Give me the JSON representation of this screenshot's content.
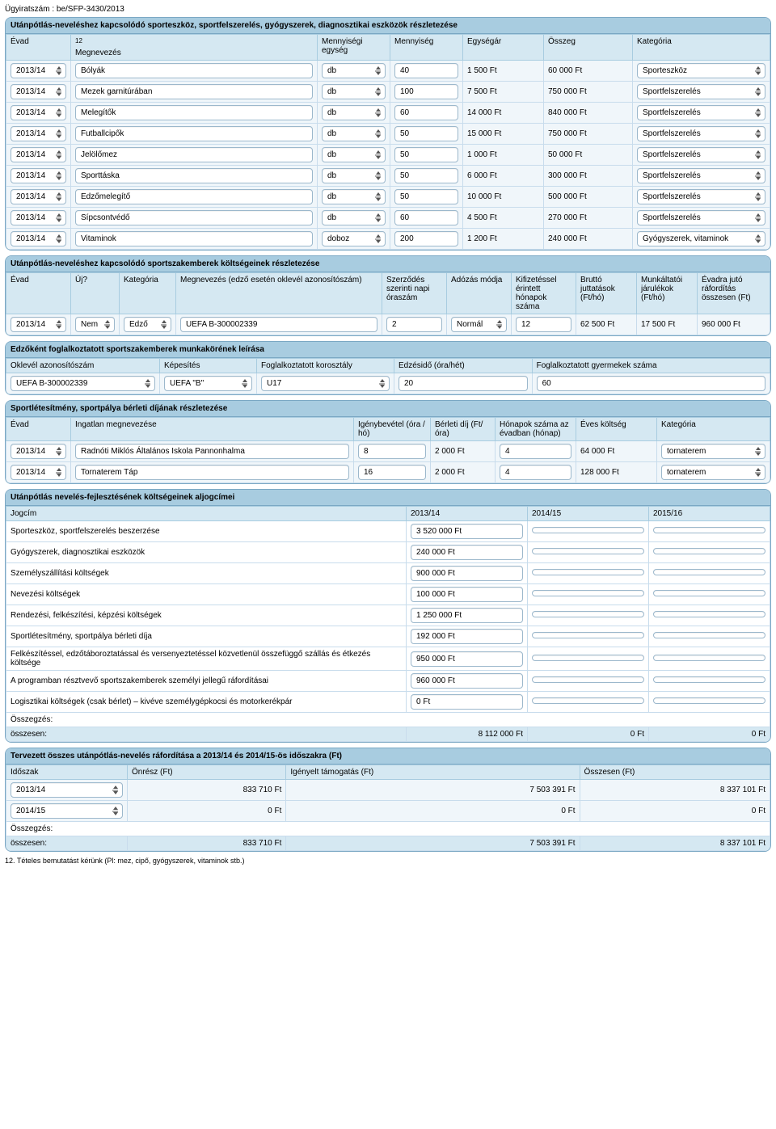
{
  "doc_id": "Ügyiratszám : be/SFP-3430/2013",
  "equipment": {
    "title": "Utánpótlás-neveléshez kapcsolódó sporteszköz, sportfelszerelés, gyógyszerek, diagnosztikai eszközök részletezése",
    "sup": "12",
    "headers": [
      "Évad",
      "Megnevezés",
      "Mennyiségi egység",
      "Mennyiség",
      "Egységár",
      "Összeg",
      "Kategória"
    ],
    "rows": [
      {
        "evad": "2013/14",
        "name": "Bólyák",
        "unit": "db",
        "qty": "40",
        "price": "1 500 Ft",
        "sum": "60 000  Ft",
        "cat": "Sporteszköz"
      },
      {
        "evad": "2013/14",
        "name": "Mezek garnitúrában",
        "unit": "db",
        "qty": "100",
        "price": "7 500 Ft",
        "sum": "750 000  Ft",
        "cat": "Sportfelszerelés"
      },
      {
        "evad": "2013/14",
        "name": "Melegítők",
        "unit": "db",
        "qty": "60",
        "price": "14 000 Ft",
        "sum": "840 000  Ft",
        "cat": "Sportfelszerelés"
      },
      {
        "evad": "2013/14",
        "name": "Futballcipők",
        "unit": "db",
        "qty": "50",
        "price": "15 000 Ft",
        "sum": "750 000  Ft",
        "cat": "Sportfelszerelés"
      },
      {
        "evad": "2013/14",
        "name": "Jelölőmez",
        "unit": "db",
        "qty": "50",
        "price": "1 000 Ft",
        "sum": "50 000  Ft",
        "cat": "Sportfelszerelés"
      },
      {
        "evad": "2013/14",
        "name": "Sporttáska",
        "unit": "db",
        "qty": "50",
        "price": "6 000 Ft",
        "sum": "300 000  Ft",
        "cat": "Sportfelszerelés"
      },
      {
        "evad": "2013/14",
        "name": "Edzőmelegítő",
        "unit": "db",
        "qty": "50",
        "price": "10 000 Ft",
        "sum": "500 000  Ft",
        "cat": "Sportfelszerelés"
      },
      {
        "evad": "2013/14",
        "name": "Sípcsontvédő",
        "unit": "db",
        "qty": "60",
        "price": "4 500 Ft",
        "sum": "270 000  Ft",
        "cat": "Sportfelszerelés"
      },
      {
        "evad": "2013/14",
        "name": "Vitaminok",
        "unit": "doboz",
        "qty": "200",
        "price": "1 200 Ft",
        "sum": "240 000  Ft",
        "cat": "Gyógyszerek, vitaminok"
      }
    ]
  },
  "staff": {
    "title": "Utánpótlás-neveléshez kapcsolódó sportszakemberek költségeinek részletezése",
    "headers": [
      "Évad",
      "Új?",
      "Kategória",
      "Megnevezés (edző esetén oklevél azonosítószám)",
      "Szerződés szerinti napi óraszám",
      "Adózás módja",
      "Kifizetéssel érintett hónapok száma",
      "Bruttó juttatások (Ft/hó)",
      "Munkáltatói járulékok (Ft/hó)",
      "Évadra jutó ráfordítás összesen (Ft)"
    ],
    "row": {
      "evad": "2013/14",
      "uj": "Nem",
      "kat": "Edző",
      "meg": "UEFA B-300002339",
      "ora": "2",
      "adozas": "Normál",
      "honap": "12",
      "brutto": "62 500 Ft",
      "jar": "17 500 Ft",
      "ossz": "960 000 Ft"
    }
  },
  "coach": {
    "title": "Edzőként foglalkoztatott sportszakemberek munkakörének leírása",
    "headers": [
      "Oklevél azonosítószám",
      "Képesítés",
      "Foglalkoztatott korosztály",
      "Edzésidő (óra/hét)",
      "Foglalkoztatott gyermekek száma"
    ],
    "row": {
      "id": "UEFA B-300002339",
      "kep": "UEFA \"B\"",
      "kor": "U17",
      "ido": "20",
      "gyerek": "60"
    }
  },
  "facility": {
    "title": "Sportlétesítmény, sportpálya bérleti díjának részletezése",
    "headers": [
      "Évad",
      "Ingatlan megnevezése",
      "Igénybevétel (óra / hó)",
      "Bérleti díj (Ft/óra)",
      "Hónapok száma az évadban (hónap)",
      "Éves költség",
      "Kategória"
    ],
    "rows": [
      {
        "evad": "2013/14",
        "name": "Radnóti Miklós Általános Iskola Pannonhalma",
        "ora": "8",
        "dij": "2 000 Ft",
        "ho": "4",
        "ev": "64 000  Ft",
        "kat": "tornaterem"
      },
      {
        "evad": "2013/14",
        "name": "Tornaterem Táp",
        "ora": "16",
        "dij": "2 000 Ft",
        "ho": "4",
        "ev": "128 000  Ft",
        "kat": "tornaterem"
      }
    ]
  },
  "costs": {
    "title": "Utánpótlás nevelés-fejlesztésének költségeinek aljogcímei",
    "headers": [
      "Jogcím",
      "2013/14",
      "2014/15",
      "2015/16"
    ],
    "rows": [
      {
        "j": "Sporteszköz, sportfelszerelés beszerzése",
        "a": "3 520 000 Ft",
        "b": "",
        "c": ""
      },
      {
        "j": "Gyógyszerek, diagnosztikai eszközök",
        "a": "240 000  Ft",
        "b": "",
        "c": ""
      },
      {
        "j": "Személyszállítási költségek",
        "a": "900 000 Ft",
        "b": "",
        "c": ""
      },
      {
        "j": "Nevezési költségek",
        "a": "100 000 Ft",
        "b": "",
        "c": ""
      },
      {
        "j": "Rendezési, felkészítési, képzési költségek",
        "a": "1 250 000 Ft",
        "b": "",
        "c": ""
      },
      {
        "j": "Sportlétesítmény, sportpálya bérleti díja",
        "a": "192 000  Ft",
        "b": "",
        "c": ""
      },
      {
        "j": "Felkészítéssel, edzőtáboroztatással és versenyeztetéssel közvetlenül összefüggő szállás és étkezés költsége",
        "a": "950 000 Ft",
        "b": "",
        "c": ""
      },
      {
        "j": "A programban résztvevő sportszakemberek személyi jellegű ráfordításai",
        "a": "960 000  Ft",
        "b": "",
        "c": ""
      },
      {
        "j": "Logisztikai költségek (csak bérlet) – kivéve személygépkocsi és motorkerékpár",
        "a": "0 Ft",
        "b": "",
        "c": ""
      }
    ],
    "sum_label": "Összegzés:",
    "sum_label2": "összesen:",
    "totals": {
      "a": "8 112 000 Ft",
      "b": "0 Ft",
      "c": "0 Ft"
    }
  },
  "planned": {
    "title": "Tervezett összes utánpótlás-nevelés ráfordítása a 2013/14 és 2014/15-ös időszakra (Ft)",
    "headers": [
      "Időszak",
      "Önrész (Ft)",
      "Igényelt támogatás (Ft)",
      "Összesen (Ft)"
    ],
    "rows": [
      {
        "ido": "2013/14",
        "on": "833 710 Ft",
        "ig": "7 503 391 Ft",
        "ossz": "8 337 101 Ft"
      },
      {
        "ido": "2014/15",
        "on": "0 Ft",
        "ig": "0 Ft",
        "ossz": "0 Ft"
      }
    ],
    "sum_label": "Összegzés:",
    "sum_label2": "összesen:",
    "totals": {
      "on": "833 710 Ft",
      "ig": "7 503 391 Ft",
      "ossz": "8 337 101 Ft"
    }
  },
  "footnote": "12. Tételes bemutatást kérünk (Pl: mez, cipő, gyógyszerek, vitaminok stb.)"
}
